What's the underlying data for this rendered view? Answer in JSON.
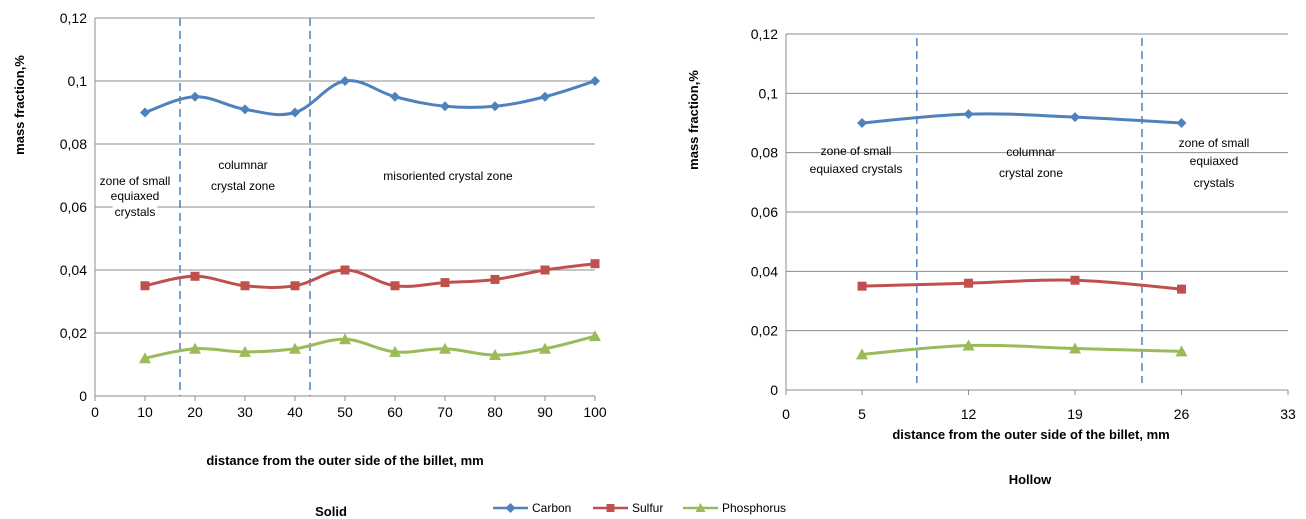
{
  "legend": [
    {
      "name": "Carbon",
      "color": "#4f81bd",
      "marker": "diamond"
    },
    {
      "name": "Sulfur",
      "color": "#c0504d",
      "marker": "square"
    },
    {
      "name": "Phosphorus",
      "color": "#9bbb59",
      "marker": "triangle"
    }
  ],
  "chart_data": [
    {
      "type": "line",
      "title": "Solid",
      "xlabel": "distance from the outer side of the billet, mm",
      "ylabel": "mass fraction,%",
      "xlim": [
        0,
        100
      ],
      "ylim": [
        0,
        0.12
      ],
      "x_ticks": [
        "0",
        "10",
        "20",
        "30",
        "40",
        "50",
        "60",
        "70",
        "80",
        "90",
        "100"
      ],
      "y_ticks": [
        "0",
        "0,02",
        "0,04",
        "0,06",
        "0,08",
        "0,1",
        "0,12"
      ],
      "grid": "horizontal",
      "x": [
        10,
        20,
        30,
        40,
        50,
        60,
        70,
        80,
        90,
        100
      ],
      "series": [
        {
          "name": "Carbon",
          "values": [
            0.09,
            0.095,
            0.091,
            0.09,
            0.1,
            0.095,
            0.092,
            0.092,
            0.095,
            0.1
          ]
        },
        {
          "name": "Sulfur",
          "values": [
            0.035,
            0.038,
            0.035,
            0.035,
            0.04,
            0.035,
            0.036,
            0.037,
            0.04,
            0.042
          ]
        },
        {
          "name": "Phosphorus",
          "values": [
            0.012,
            0.015,
            0.014,
            0.015,
            0.018,
            0.014,
            0.015,
            0.013,
            0.015,
            0.019
          ]
        }
      ],
      "zone_boundaries": [
        17,
        43
      ],
      "zones": [
        {
          "lines": [
            "zone of small",
            "equiaxed",
            "crystals"
          ]
        },
        {
          "lines": [
            "columnar",
            "crystal zone"
          ]
        },
        {
          "lines": [
            "misoriented crystal zone"
          ]
        }
      ]
    },
    {
      "type": "line",
      "title": "Hollow",
      "xlabel": "distance from the outer side of the billet, mm",
      "ylabel": "mass fraction,%",
      "xlim": [
        0,
        33
      ],
      "ylim": [
        0,
        0.12
      ],
      "x_ticks": [
        "0",
        "5",
        "12",
        "19",
        "26",
        "33"
      ],
      "y_ticks": [
        "0",
        "0,02",
        "0,04",
        "0,06",
        "0,08",
        "0,1",
        "0,12"
      ],
      "grid": "horizontal",
      "x": [
        5,
        12,
        19,
        26
      ],
      "series": [
        {
          "name": "Carbon",
          "values": [
            0.09,
            0.093,
            0.092,
            0.09
          ]
        },
        {
          "name": "Sulfur",
          "values": [
            0.035,
            0.036,
            0.037,
            0.034
          ]
        },
        {
          "name": "Phosphorus",
          "values": [
            0.012,
            0.015,
            0.014,
            0.013
          ]
        }
      ],
      "zone_boundaries": [
        8.6,
        23.4
      ],
      "zones": [
        {
          "lines": [
            "zone of small",
            "equiaxed crystals"
          ]
        },
        {
          "lines": [
            "columnar",
            "crystal zone"
          ]
        },
        {
          "lines": [
            "zone of small",
            "equiaxed",
            "crystals"
          ]
        }
      ]
    }
  ]
}
